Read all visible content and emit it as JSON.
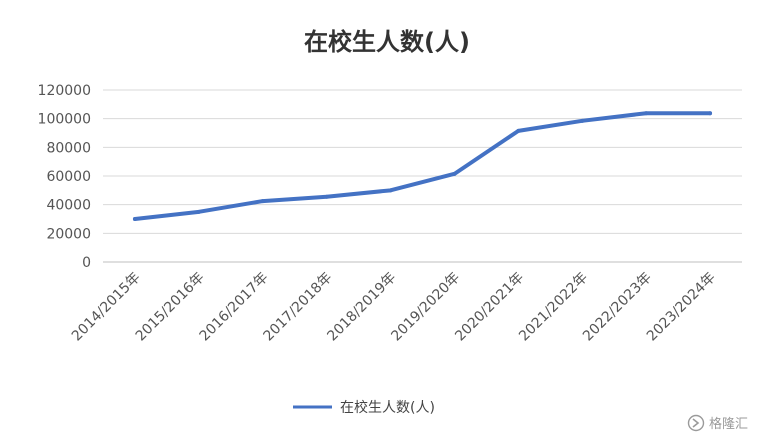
{
  "chart_data": {
    "type": "line",
    "title": "在校生人数(人)",
    "categories": [
      "2014/2015年",
      "2015/2016年",
      "2016/2017年",
      "2017/2018年",
      "2018/2019年",
      "2019/2020年",
      "2020/2021年",
      "2021/2022年",
      "2022/2023年",
      "2023/2024年"
    ],
    "series": [
      {
        "name": "在校生人数(人)",
        "values": [
          30000,
          35000,
          42500,
          45500,
          50000,
          61500,
          91500,
          98500,
          103800,
          103800
        ],
        "color": "#4472C4"
      }
    ],
    "yticks": [
      "0",
      "20000",
      "40000",
      "60000",
      "80000",
      "100000",
      "120000"
    ],
    "ylim": [
      0,
      120000
    ],
    "grid": true,
    "legend_position": "bottom"
  },
  "watermark": {
    "text": "格隆汇",
    "icon": "glh-logo-icon"
  }
}
